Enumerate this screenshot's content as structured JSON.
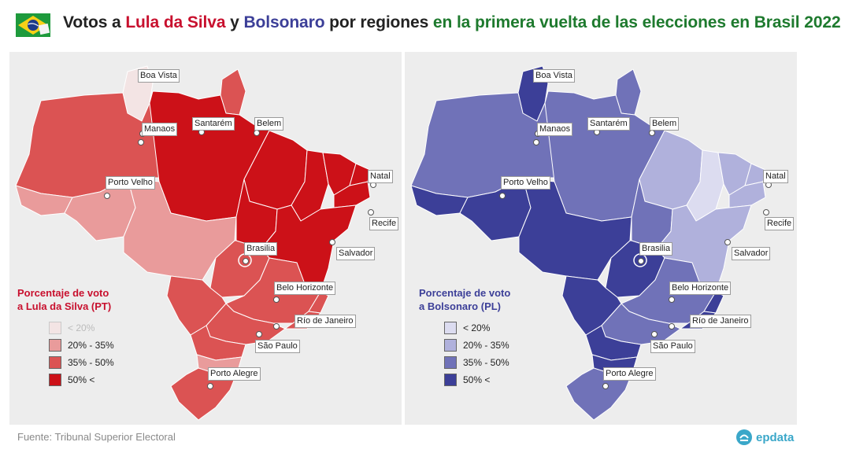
{
  "header": {
    "title_parts": {
      "p1": "Votos a ",
      "p2": "Lula da Silva",
      "p3": " y ",
      "p4": "Bolsonaro",
      "p5": " por regiones ",
      "p6": "en la primera vuelta de las elecciones en Brasil 2022"
    },
    "flag_icon": "brazil-flag-icon"
  },
  "colors": {
    "lula_title": "#c8102e",
    "bolsonaro_title": "#3c3f98",
    "region_title": "#1e7a2e",
    "lula_scale": [
      "#f3e4e4",
      "#e99b9b",
      "#db5353",
      "#cc1118"
    ],
    "bolsonaro_scale": [
      "#dcdcf0",
      "#b0b1dc",
      "#7072b8",
      "#3c3f98"
    ]
  },
  "cities": [
    {
      "name": "Boa Vista"
    },
    {
      "name": "Manaos"
    },
    {
      "name": "Santarém"
    },
    {
      "name": "Belem"
    },
    {
      "name": "Natal"
    },
    {
      "name": "Porto Velho"
    },
    {
      "name": "Recife"
    },
    {
      "name": "Brasilia"
    },
    {
      "name": "Salvador"
    },
    {
      "name": "Belo Horizonte"
    },
    {
      "name": "Río de Janeiro"
    },
    {
      "name": "São Paulo"
    },
    {
      "name": "Porto Alegre"
    }
  ],
  "maps": {
    "lula": {
      "legend_title_line1": "Porcentaje de voto",
      "legend_title_line2": "a Lula da Silva (PT)",
      "legend": [
        "< 20%",
        "20% - 35%",
        "35% - 50%",
        "50% <"
      ]
    },
    "bolsonaro": {
      "legend_title_line1": "Porcentaje de voto",
      "legend_title_line2": "a Bolsonaro (PL)",
      "legend": [
        "< 20%",
        "20% - 35%",
        "35% - 50%",
        "50% <"
      ]
    }
  },
  "footer": {
    "source": "Fuente: Tribunal Superior Electoral",
    "brand": "epdata",
    "brand_icon": "epdata-logo-icon"
  }
}
